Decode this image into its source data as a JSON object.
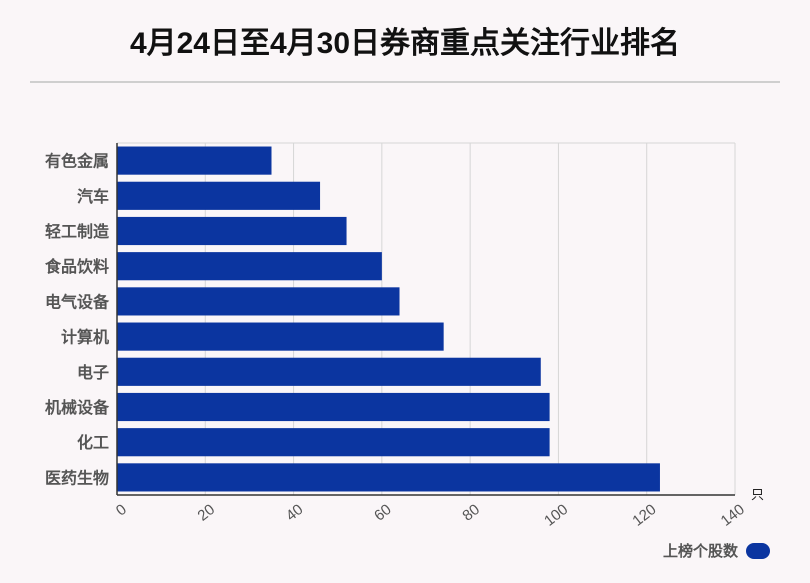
{
  "chart_data": {
    "type": "bar",
    "orientation": "horizontal",
    "title": "4月24日至4月30日券商重点关注行业排名",
    "categories": [
      "有色金属",
      "汽车",
      "轻工制造",
      "食品饮料",
      "电气设备",
      "计算机",
      "电子",
      "机械设备",
      "化工",
      "医药生物"
    ],
    "series": [
      {
        "name": "上榜个股数",
        "values": [
          35,
          46,
          52,
          60,
          64,
          74,
          96,
          98,
          98,
          123
        ]
      }
    ],
    "xlim": [
      0,
      140
    ],
    "xticks": [
      0,
      20,
      40,
      60,
      80,
      100,
      120,
      140
    ],
    "xunit": "只",
    "grid": true,
    "legend_position": "bottom-right",
    "bar_color": "#0b35a0"
  }
}
